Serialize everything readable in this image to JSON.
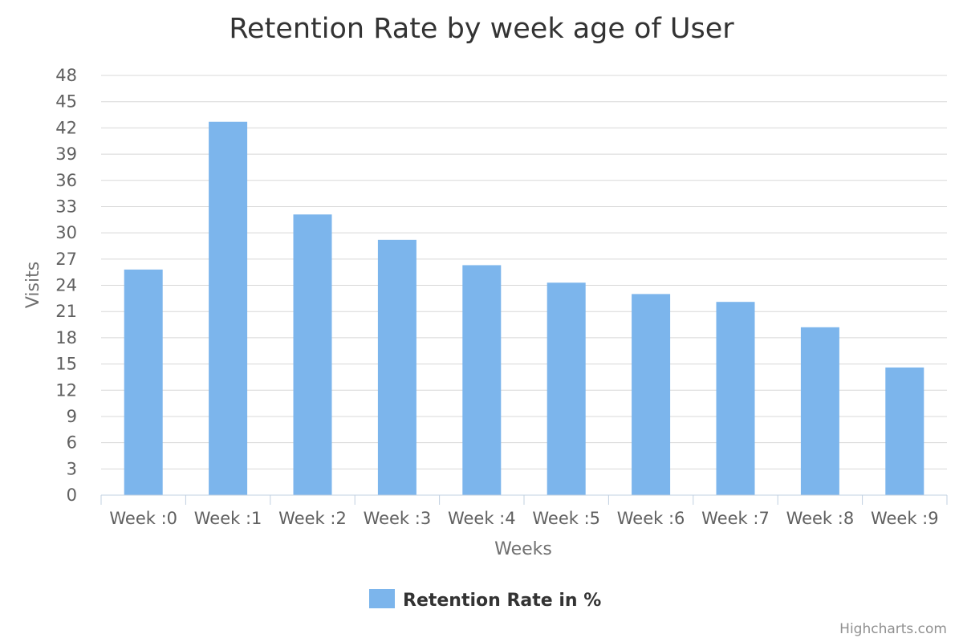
{
  "chart_data": {
    "type": "bar",
    "title": "Retention Rate by week age of User",
    "xlabel": "Weeks",
    "ylabel": "Visits",
    "categories": [
      "Week :0",
      "Week :1",
      "Week :2",
      "Week :3",
      "Week :4",
      "Week :5",
      "Week :6",
      "Week :7",
      "Week :8",
      "Week :9"
    ],
    "series": [
      {
        "name": "Retention Rate in %",
        "color": "#7cb5ec",
        "values": [
          25.8,
          42.7,
          32.1,
          29.2,
          26.3,
          24.3,
          23.0,
          22.1,
          19.2,
          14.6
        ]
      }
    ],
    "ylim": [
      0,
      48
    ],
    "yticks": [
      0,
      3,
      6,
      9,
      12,
      15,
      18,
      21,
      24,
      27,
      30,
      33,
      36,
      39,
      42,
      45,
      48
    ],
    "grid": true,
    "legend_position": "bottom-center"
  },
  "credits": "Highcharts.com"
}
